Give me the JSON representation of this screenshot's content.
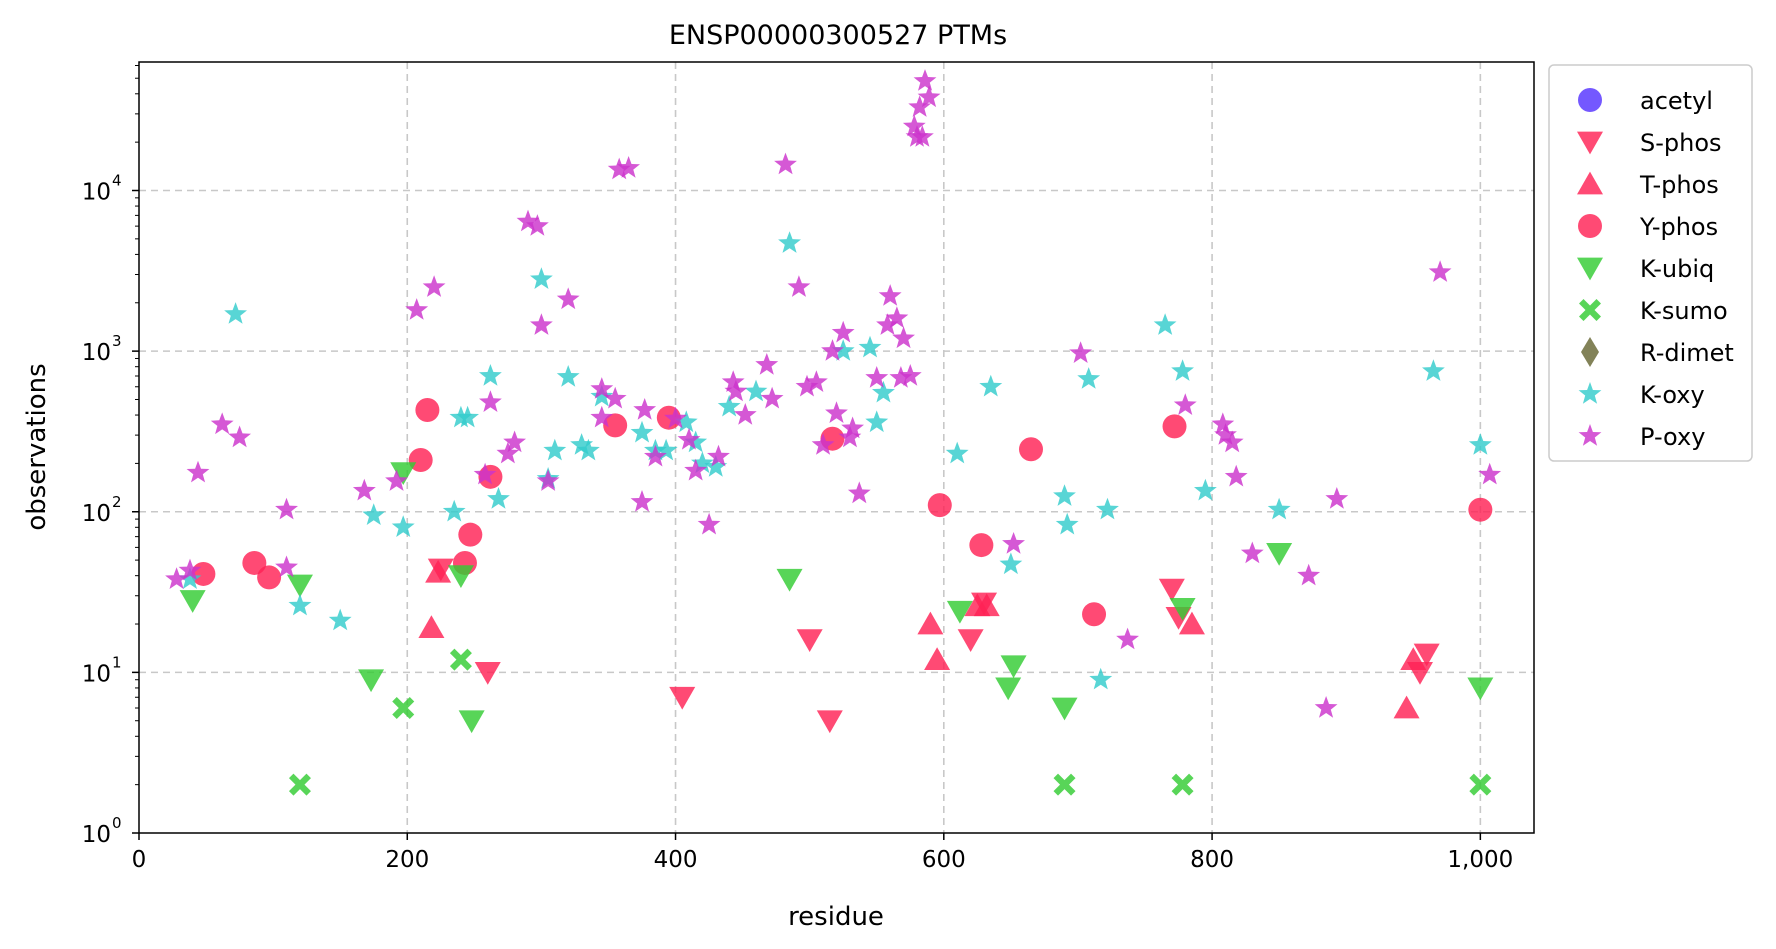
{
  "chart_data": {
    "type": "scatter",
    "title": "ENSP00000300527 PTMs",
    "xlabel": "residue",
    "ylabel": "observations",
    "xlim": [
      0,
      1040
    ],
    "ylim_log10": [
      0,
      4.8
    ],
    "y_scale": "log",
    "grid": true,
    "legend_position": "outside-right-top",
    "x_ticks": [
      0,
      200,
      400,
      600,
      800,
      1000
    ],
    "x_tick_labels": [
      "0",
      "200",
      "400",
      "600",
      "800",
      "1,000"
    ],
    "y_ticks": [
      1,
      10,
      100,
      1000,
      10000
    ],
    "y_tick_labels": [
      "10",
      "10",
      "10",
      "10",
      "10"
    ],
    "y_tick_exponents": [
      "0",
      "1",
      "2",
      "3",
      "4"
    ],
    "series": [
      {
        "name": "acetyl",
        "marker": "circle",
        "color": "#5533ff",
        "points": []
      },
      {
        "name": "S-phos",
        "marker": "triangle-down",
        "color": "#ff2255",
        "points": [
          [
            225,
            44
          ],
          [
            260,
            10
          ],
          [
            405,
            7
          ],
          [
            500,
            16
          ],
          [
            515,
            5
          ],
          [
            620,
            16
          ],
          [
            630,
            27
          ],
          [
            770,
            33
          ],
          [
            775,
            22
          ],
          [
            955,
            10
          ],
          [
            960,
            13
          ]
        ]
      },
      {
        "name": "T-phos",
        "marker": "triangle-up",
        "color": "#ff2255",
        "points": [
          [
            218,
            19
          ],
          [
            223,
            42
          ],
          [
            590,
            20
          ],
          [
            595,
            12
          ],
          [
            625,
            26
          ],
          [
            632,
            26
          ],
          [
            785,
            20
          ],
          [
            945,
            6
          ],
          [
            950,
            12
          ]
        ]
      },
      {
        "name": "Y-phos",
        "marker": "circle",
        "color": "#ff2255",
        "points": [
          [
            48,
            41
          ],
          [
            86,
            48
          ],
          [
            97,
            39
          ],
          [
            210,
            210
          ],
          [
            215,
            430
          ],
          [
            243,
            48
          ],
          [
            247,
            72
          ],
          [
            262,
            165
          ],
          [
            355,
            345
          ],
          [
            395,
            385
          ],
          [
            517,
            285
          ],
          [
            597,
            110
          ],
          [
            628,
            62
          ],
          [
            665,
            245
          ],
          [
            712,
            23
          ],
          [
            772,
            340
          ],
          [
            1000,
            103
          ]
        ]
      },
      {
        "name": "K-ubiq",
        "marker": "triangle-down",
        "color": "#33cc33",
        "points": [
          [
            40,
            28
          ],
          [
            120,
            35
          ],
          [
            173,
            9
          ],
          [
            197,
            175
          ],
          [
            240,
            40
          ],
          [
            248,
            5
          ],
          [
            485,
            38
          ],
          [
            612,
            24
          ],
          [
            648,
            8
          ],
          [
            652,
            11
          ],
          [
            690,
            6
          ],
          [
            778,
            25
          ],
          [
            850,
            55
          ],
          [
            1000,
            8
          ]
        ]
      },
      {
        "name": "K-sumo",
        "marker": "x",
        "color": "#33cc33",
        "points": [
          [
            120,
            2
          ],
          [
            197,
            6
          ],
          [
            240,
            12
          ],
          [
            690,
            2
          ],
          [
            778,
            2
          ],
          [
            1000,
            2
          ]
        ]
      },
      {
        "name": "R-dimet",
        "marker": "diamond",
        "color": "#666633",
        "points": []
      },
      {
        "name": "K-oxy",
        "marker": "star",
        "color": "#33cccc",
        "points": [
          [
            38,
            38
          ],
          [
            72,
            1700
          ],
          [
            120,
            26
          ],
          [
            150,
            21
          ],
          [
            175,
            95
          ],
          [
            197,
            80
          ],
          [
            235,
            100
          ],
          [
            240,
            385
          ],
          [
            245,
            385
          ],
          [
            262,
            700
          ],
          [
            268,
            120
          ],
          [
            300,
            2800
          ],
          [
            305,
            160
          ],
          [
            310,
            240
          ],
          [
            320,
            690
          ],
          [
            330,
            260
          ],
          [
            335,
            240
          ],
          [
            345,
            520
          ],
          [
            375,
            310
          ],
          [
            385,
            240
          ],
          [
            393,
            240
          ],
          [
            408,
            360
          ],
          [
            415,
            270
          ],
          [
            420,
            200
          ],
          [
            430,
            190
          ],
          [
            440,
            450
          ],
          [
            460,
            560
          ],
          [
            485,
            4700
          ],
          [
            525,
            1000
          ],
          [
            545,
            1050
          ],
          [
            550,
            360
          ],
          [
            555,
            550
          ],
          [
            610,
            230
          ],
          [
            635,
            600
          ],
          [
            650,
            47
          ],
          [
            690,
            125
          ],
          [
            692,
            83
          ],
          [
            708,
            670
          ],
          [
            717,
            9
          ],
          [
            722,
            103
          ],
          [
            765,
            1450
          ],
          [
            778,
            750
          ],
          [
            795,
            135
          ],
          [
            850,
            103
          ],
          [
            965,
            750
          ],
          [
            1000,
            260
          ]
        ]
      },
      {
        "name": "P-oxy",
        "marker": "star",
        "color": "#cc33cc",
        "points": [
          [
            28,
            38
          ],
          [
            38,
            43
          ],
          [
            44,
            175
          ],
          [
            62,
            350
          ],
          [
            75,
            290
          ],
          [
            110,
            103
          ],
          [
            110,
            45
          ],
          [
            168,
            135
          ],
          [
            192,
            155
          ],
          [
            207,
            1800
          ],
          [
            220,
            2500
          ],
          [
            258,
            170
          ],
          [
            262,
            480
          ],
          [
            275,
            230
          ],
          [
            280,
            270
          ],
          [
            290,
            6400
          ],
          [
            297,
            6000
          ],
          [
            300,
            1450
          ],
          [
            305,
            155
          ],
          [
            320,
            2100
          ],
          [
            345,
            385
          ],
          [
            345,
            580
          ],
          [
            355,
            505
          ],
          [
            358,
            13500
          ],
          [
            365,
            13800
          ],
          [
            375,
            115
          ],
          [
            377,
            430
          ],
          [
            385,
            220
          ],
          [
            400,
            380
          ],
          [
            410,
            280
          ],
          [
            415,
            180
          ],
          [
            425,
            83
          ],
          [
            432,
            220
          ],
          [
            443,
            640
          ],
          [
            445,
            560
          ],
          [
            452,
            400
          ],
          [
            468,
            820
          ],
          [
            472,
            505
          ],
          [
            482,
            14500
          ],
          [
            492,
            2500
          ],
          [
            498,
            600
          ],
          [
            505,
            640
          ],
          [
            510,
            260
          ],
          [
            517,
            1000
          ],
          [
            520,
            410
          ],
          [
            525,
            1300
          ],
          [
            530,
            290
          ],
          [
            532,
            330
          ],
          [
            537,
            130
          ],
          [
            550,
            680
          ],
          [
            558,
            1450
          ],
          [
            560,
            2200
          ],
          [
            565,
            1600
          ],
          [
            568,
            680
          ],
          [
            575,
            700
          ],
          [
            570,
            1200
          ],
          [
            578,
            25000
          ],
          [
            580,
            21500
          ],
          [
            582,
            33000
          ],
          [
            584,
            21500
          ],
          [
            586,
            48000
          ],
          [
            589,
            38000
          ],
          [
            652,
            63
          ],
          [
            702,
            970
          ],
          [
            737,
            16
          ],
          [
            780,
            460
          ],
          [
            808,
            350
          ],
          [
            810,
            300
          ],
          [
            815,
            270
          ],
          [
            818,
            165
          ],
          [
            830,
            55
          ],
          [
            872,
            40
          ],
          [
            885,
            6
          ],
          [
            893,
            120
          ],
          [
            970,
            3100
          ],
          [
            1007,
            170
          ]
        ]
      }
    ]
  }
}
